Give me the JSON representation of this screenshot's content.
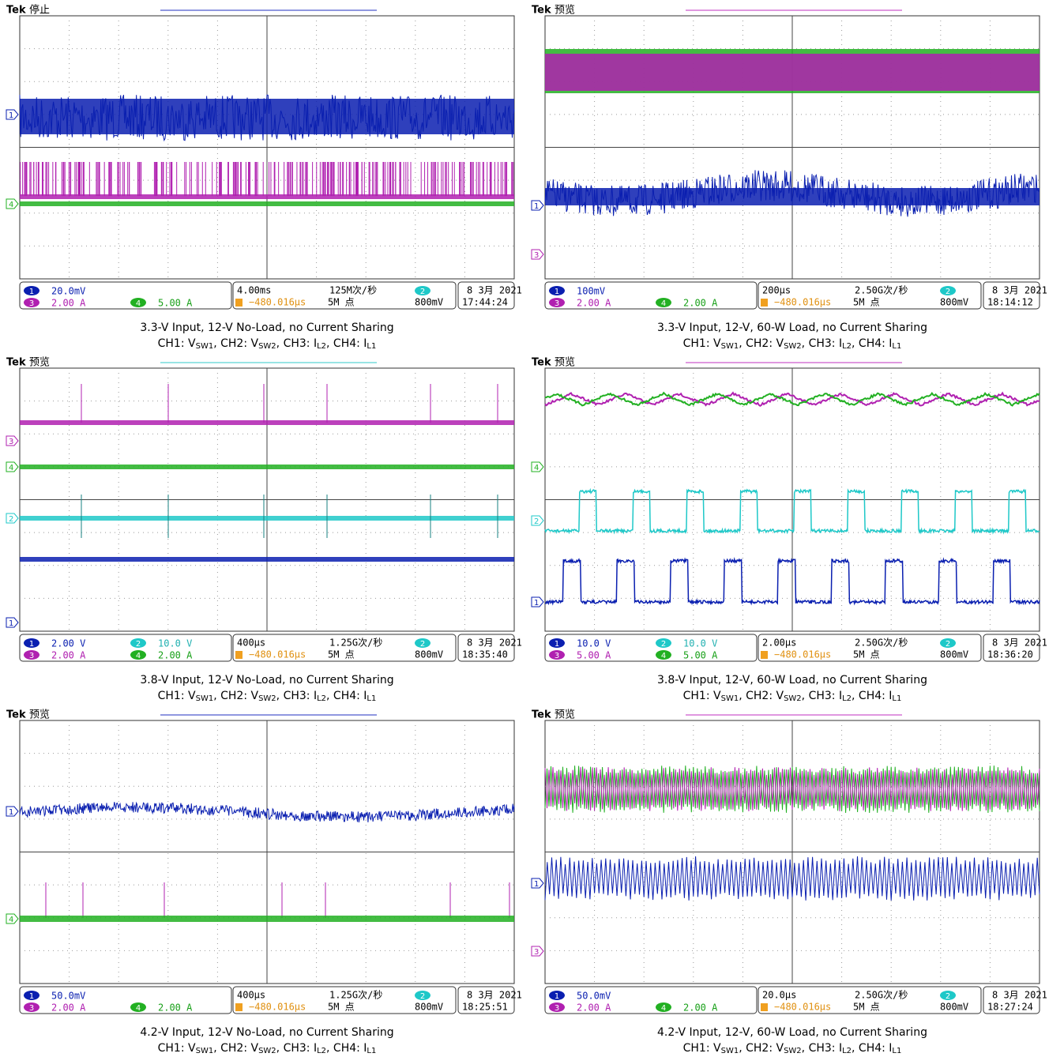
{
  "panels": [
    {
      "brand": "Tek",
      "status": "停止",
      "readout": [
        {
          "ch": "1",
          "scale": "20.0mV"
        },
        {
          "ch": "3",
          "scale": "2.00 A"
        },
        {
          "ch": "4",
          "scale": "5.00 A"
        }
      ],
      "timebase": "4.00ms",
      "rate": "125M次/秒",
      "offset": "−480.016µs",
      "points": "5M 点",
      "trigger_source": "2",
      "trigger_level": "800mV",
      "date": "8 3月 2021",
      "time": "17:44:24",
      "markers": [
        "1",
        "4"
      ],
      "caption": "3.3-V Input, 12-V No-Load, no Current Sharing",
      "caption_line2": [
        "CH1: V",
        "SW1",
        ", CH2: V",
        "SW2",
        ", CH3: I",
        "L2",
        ", CH4: I",
        "L1"
      ]
    },
    {
      "brand": "Tek",
      "status": "预览",
      "readout": [
        {
          "ch": "1",
          "scale": "100mV"
        },
        {
          "ch": "3",
          "scale": "2.00 A"
        },
        {
          "ch": "4",
          "scale": "2.00 A"
        }
      ],
      "timebase": "200µs",
      "rate": "2.50G次/秒",
      "offset": "−480.016µs",
      "points": "5M 点",
      "trigger_source": "2",
      "trigger_level": "800mV",
      "date": "8 3月 2021",
      "time": "18:14:12",
      "markers": [
        "1",
        "3"
      ],
      "caption": "3.3-V Input, 12-V, 60-W Load, no Current Sharing",
      "caption_line2": [
        "CH1: V",
        "SW1",
        ", CH2: V",
        "SW2",
        ", CH3: I",
        "L2",
        ", CH4: I",
        "L1"
      ]
    },
    {
      "brand": "Tek",
      "status": "预览",
      "readout": [
        {
          "ch": "1",
          "scale": "2.00 V"
        },
        {
          "ch": "2",
          "scale": "10.0 V"
        },
        {
          "ch": "3",
          "scale": "2.00 A"
        },
        {
          "ch": "4",
          "scale": "2.00 A"
        }
      ],
      "timebase": "400µs",
      "rate": "1.25G次/秒",
      "offset": "−480.016µs",
      "points": "5M 点",
      "trigger_source": "2",
      "trigger_level": "800mV",
      "date": "8 3月 2021",
      "time": "18:35:40",
      "markers": [
        "3",
        "4",
        "2",
        "1"
      ],
      "caption": "3.8-V Input, 12-V No-Load, no Current Sharing",
      "caption_line2": [
        "CH1: V",
        "SW1",
        ", CH2: V",
        "SW2",
        ", CH3: I",
        "L2",
        ", CH4: I",
        "L1"
      ]
    },
    {
      "brand": "Tek",
      "status": "预览",
      "readout": [
        {
          "ch": "1",
          "scale": "10.0 V"
        },
        {
          "ch": "2",
          "scale": "10.0 V"
        },
        {
          "ch": "3",
          "scale": "5.00 A"
        },
        {
          "ch": "4",
          "scale": "5.00 A"
        }
      ],
      "timebase": "2.00µs",
      "rate": "2.50G次/秒",
      "offset": "−480.016µs",
      "points": "5M 点",
      "trigger_source": "2",
      "trigger_level": "800mV",
      "date": "8 3月 2021",
      "time": "18:36:20",
      "markers": [
        "4",
        "2",
        "1"
      ],
      "caption": "3.8-V Input, 12-V, 60-W Load, no Current Sharing",
      "caption_line2": [
        "CH1: V",
        "SW1",
        ", CH2: V",
        "SW2",
        ", CH3: I",
        "L2",
        ", CH4: I",
        "L1"
      ]
    },
    {
      "brand": "Tek",
      "status": "预览",
      "readout": [
        {
          "ch": "1",
          "scale": "50.0mV"
        },
        {
          "ch": "3",
          "scale": "2.00 A"
        },
        {
          "ch": "4",
          "scale": "2.00 A"
        }
      ],
      "timebase": "400µs",
      "rate": "1.25G次/秒",
      "offset": "−480.016µs",
      "points": "5M 点",
      "trigger_source": "2",
      "trigger_level": "800mV",
      "date": "8 3月 2021",
      "time": "18:25:51",
      "markers": [
        "1",
        "4"
      ],
      "caption": "4.2-V Input, 12-V No-Load, no Current Sharing",
      "caption_line2": [
        "CH1: V",
        "SW1",
        ", CH2: V",
        "SW2",
        ", CH3: I",
        "L2",
        ", CH4: I",
        "L1"
      ]
    },
    {
      "brand": "Tek",
      "status": "预览",
      "readout": [
        {
          "ch": "1",
          "scale": "50.0mV"
        },
        {
          "ch": "3",
          "scale": "2.00 A"
        },
        {
          "ch": "4",
          "scale": "2.00 A"
        }
      ],
      "timebase": "20.0µs",
      "rate": "2.50G次/秒",
      "offset": "−480.016µs",
      "points": "5M 点",
      "trigger_source": "2",
      "trigger_level": "800mV",
      "date": "8 3月 2021",
      "time": "18:27:24",
      "markers": [
        "1",
        "3"
      ],
      "caption": "4.2-V Input, 12-V, 60-W Load, no Current Sharing",
      "caption_line2": [
        "CH1: V",
        "SW1",
        ", CH2: V",
        "SW2",
        ", CH3: I",
        "L2",
        ", CH4: I",
        "L1"
      ]
    }
  ]
}
